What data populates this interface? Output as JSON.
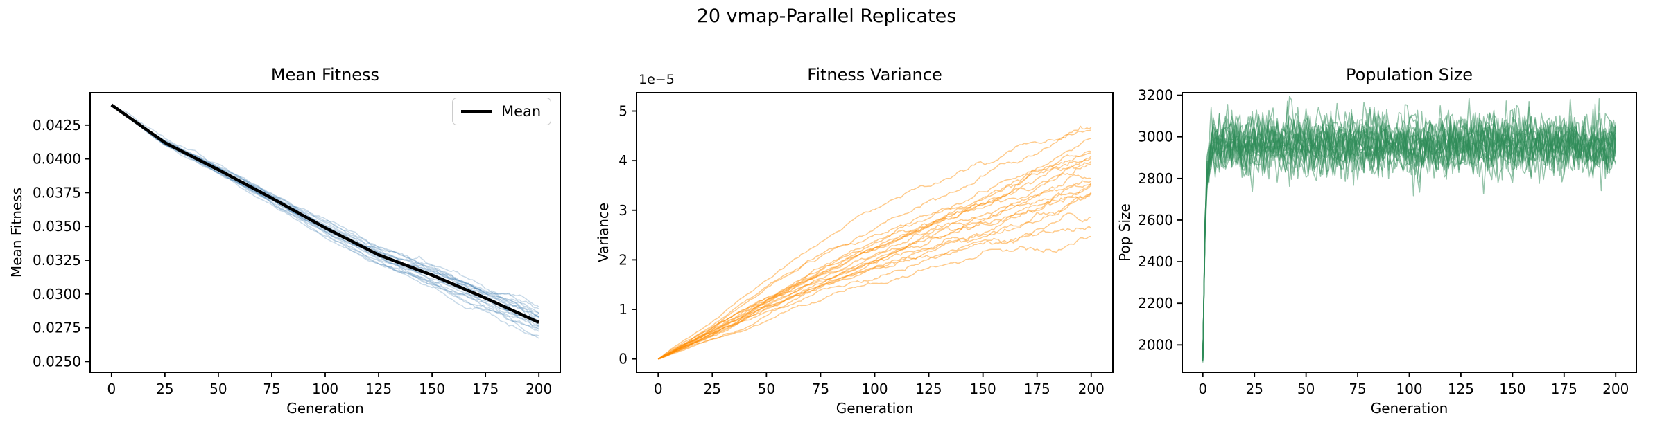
{
  "figure": {
    "suptitle": "20 vmap-Parallel Replicates",
    "background": "#ffffff",
    "n_replicates": 20
  },
  "chart_data": [
    {
      "type": "line",
      "title": "Mean Fitness",
      "xlabel": "Generation",
      "ylabel": "Mean Fitness",
      "legend": [
        "Mean"
      ],
      "legend_position": "upper right",
      "x_ticks": [
        0,
        25,
        50,
        75,
        100,
        125,
        150,
        175,
        200
      ],
      "y_ticks": [
        0.025,
        0.0275,
        0.03,
        0.0325,
        0.035,
        0.0375,
        0.04,
        0.0425
      ],
      "y_tick_labels": [
        "0.0250",
        "0.0275",
        "0.0300",
        "0.0325",
        "0.0350",
        "0.0375",
        "0.0400",
        "0.0425"
      ],
      "xlim": [
        -10,
        210
      ],
      "ylim": [
        0.0242,
        0.0449
      ],
      "x_anchor": [
        0,
        25,
        50,
        75,
        100,
        125,
        150,
        175,
        200
      ],
      "mean_values": [
        0.044,
        0.0412,
        0.0392,
        0.0371,
        0.0349,
        0.0329,
        0.0314,
        0.0297,
        0.0279
      ],
      "n_replicates": 20,
      "replicate_color": "#4682B4",
      "replicate_alpha": 0.3,
      "mean_color": "#000000",
      "end_spread": 0.0013,
      "grid": false
    },
    {
      "type": "line",
      "title": "Fitness Variance",
      "xlabel": "Generation",
      "ylabel": "Variance",
      "offset_text": "1e−5",
      "x_ticks": [
        0,
        25,
        50,
        75,
        100,
        125,
        150,
        175,
        200
      ],
      "y_ticks": [
        0,
        1,
        2,
        3,
        4,
        5
      ],
      "y_tick_labels": [
        "0",
        "1",
        "2",
        "3",
        "4",
        "5"
      ],
      "xlim": [
        -10,
        210
      ],
      "ylim_1e5": [
        -0.27,
        5.37
      ],
      "x_anchor": [
        0,
        25,
        50,
        75,
        100,
        125,
        150,
        175,
        200
      ],
      "center_values_1e5": [
        0,
        0.55,
        1.15,
        1.7,
        2.15,
        2.55,
        2.9,
        3.3,
        3.7
      ],
      "end_range_1e5": [
        2.6,
        5.0
      ],
      "n_replicates": 20,
      "replicate_color": "#FF8C00",
      "replicate_alpha": 0.45,
      "grid": false
    },
    {
      "type": "line",
      "title": "Population Size",
      "xlabel": "Generation",
      "ylabel": "Pop Size",
      "x_ticks": [
        0,
        25,
        50,
        75,
        100,
        125,
        150,
        175,
        200
      ],
      "y_ticks": [
        2000,
        2200,
        2400,
        2600,
        2800,
        3000,
        3200
      ],
      "y_tick_labels": [
        "2000",
        "2200",
        "2400",
        "2600",
        "2800",
        "3000",
        "3200"
      ],
      "xlim": [
        -10,
        210
      ],
      "ylim": [
        1868,
        3212
      ],
      "start_value": 1930,
      "plateau_value": 2965,
      "noise_sd": 60,
      "n_replicates": 20,
      "replicate_color": "#2E8B57",
      "replicate_alpha": 0.5,
      "grid": false
    }
  ]
}
